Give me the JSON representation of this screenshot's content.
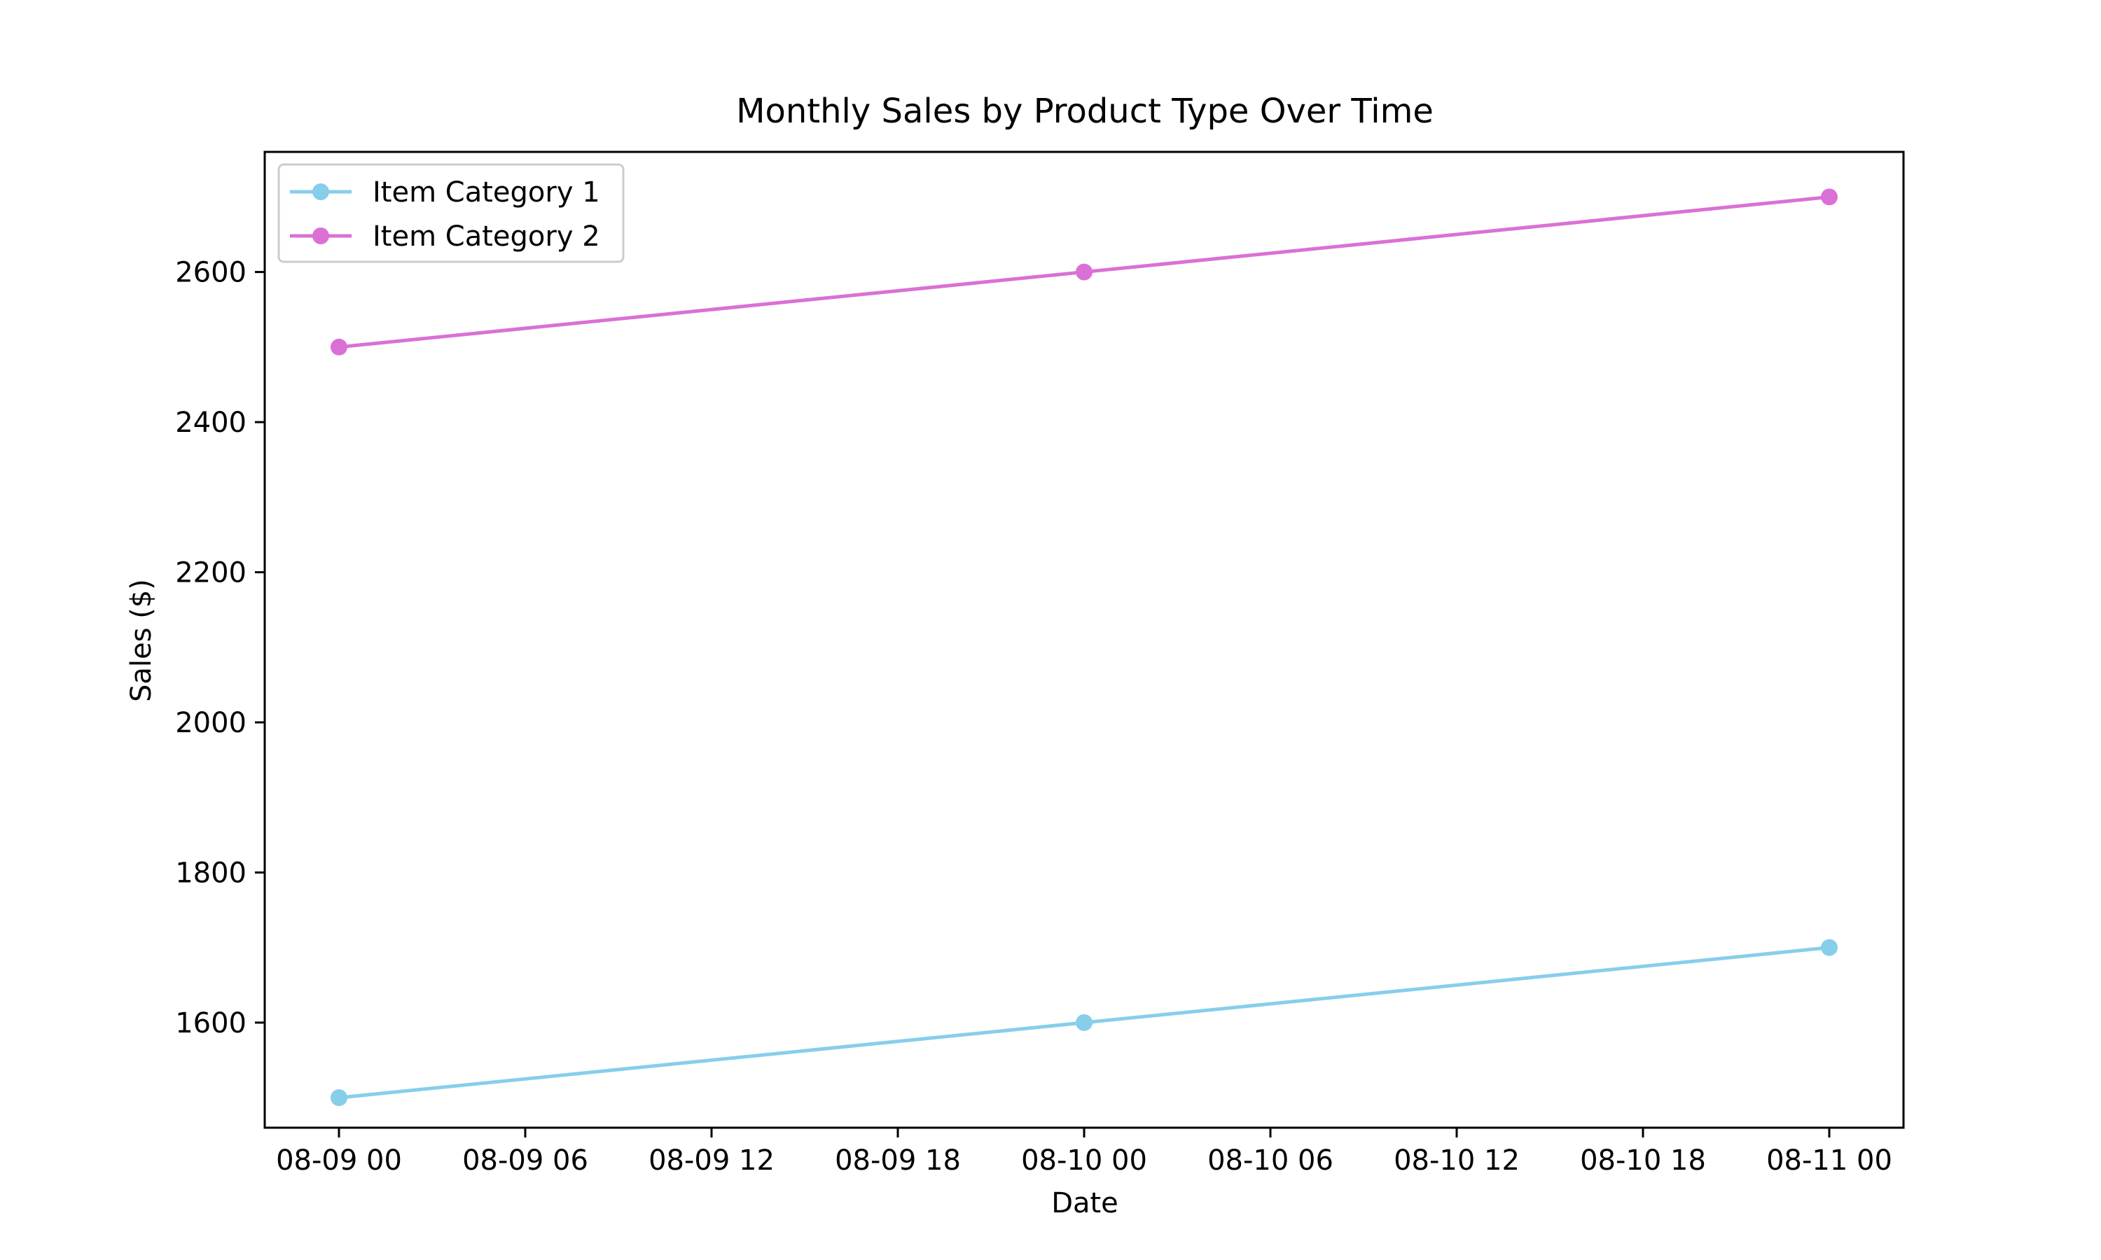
{
  "chart_data": {
    "type": "line",
    "title": "Monthly Sales by Product Type Over Time",
    "xlabel": "Date",
    "ylabel": "Sales ($)",
    "x": [
      "08-09 00",
      "08-10 00",
      "08-11 00"
    ],
    "x_ticks": [
      "08-09 00",
      "08-09 06",
      "08-09 12",
      "08-09 18",
      "08-10 00",
      "08-10 06",
      "08-10 12",
      "08-10 18",
      "08-11 00"
    ],
    "y_ticks": [
      1600,
      1800,
      2000,
      2200,
      2400,
      2600
    ],
    "ylim": [
      1460,
      2760
    ],
    "grid": false,
    "legend_position": "upper-left",
    "series": [
      {
        "name": "Item Category 1",
        "values": [
          1500,
          1600,
          1700
        ],
        "color": "#87CEEB"
      },
      {
        "name": "Item Category 2",
        "values": [
          2500,
          2600,
          2700
        ],
        "color": "#DA70D6"
      }
    ]
  }
}
